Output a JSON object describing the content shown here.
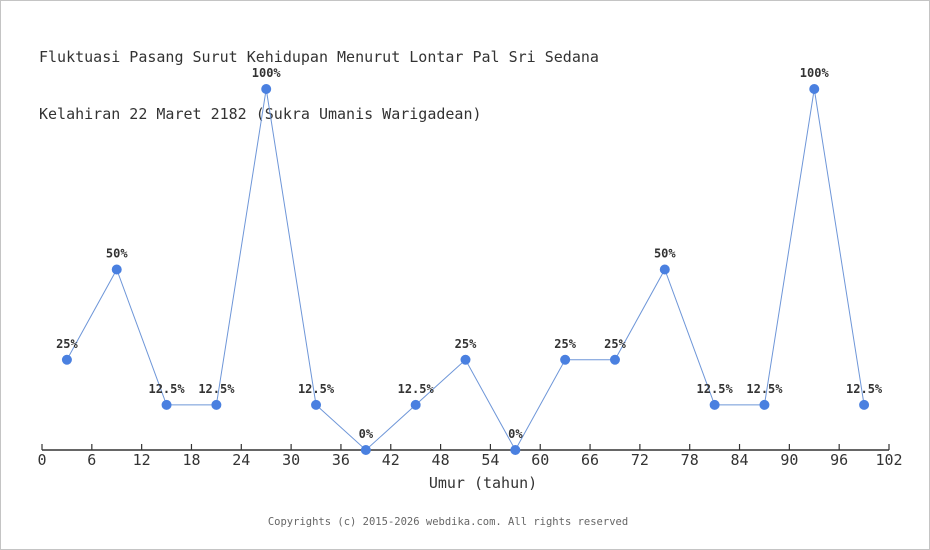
{
  "page": {
    "title_line1": "Fluktuasi Pasang Surut Kehidupan Menurut Lontar Pal Sri Sedana",
    "title_line2": "Kelahiran 22 Maret 2182 (Sukra Umanis Warigadean)",
    "footer": "Copyrights (c) 2015-2026 webdika.com. All rights reserved"
  },
  "chart_data": {
    "type": "line",
    "title": "Fluktuasi Pasang Surut Kehidupan Menurut Lontar Pal Sri Sedana Kelahiran 22 Maret 2182 (Sukra Umanis Warigadean)",
    "xlabel": "Umur (tahun)",
    "ylabel": "",
    "x": [
      3,
      9,
      15,
      21,
      27,
      33,
      39,
      45,
      51,
      57,
      63,
      69,
      75,
      81,
      87,
      93,
      99
    ],
    "values": [
      25,
      50,
      12.5,
      12.5,
      100,
      12.5,
      0,
      12.5,
      25,
      0,
      25,
      25,
      50,
      12.5,
      12.5,
      100,
      12.5
    ],
    "point_labels": [
      "25%",
      "50%",
      "12.5%",
      "12.5%",
      "100%",
      "12.5%",
      "0%",
      "12.5%",
      "25%",
      "0%",
      "25%",
      "25%",
      "50%",
      "12.5%",
      "12.5%",
      "100%",
      "12.5%"
    ],
    "x_ticks": [
      0,
      6,
      12,
      18,
      24,
      30,
      36,
      42,
      48,
      54,
      60,
      66,
      72,
      78,
      84,
      90,
      96,
      102
    ],
    "xlim": [
      0,
      102
    ],
    "ylim": [
      0,
      100
    ],
    "grid": false,
    "legend": "none",
    "colors": {
      "marker": "#4a80e0",
      "line": "#6e96d8",
      "axis": "#333333",
      "tick_label": "#333333",
      "point_label": "#333333",
      "background": "#ffffff"
    }
  }
}
